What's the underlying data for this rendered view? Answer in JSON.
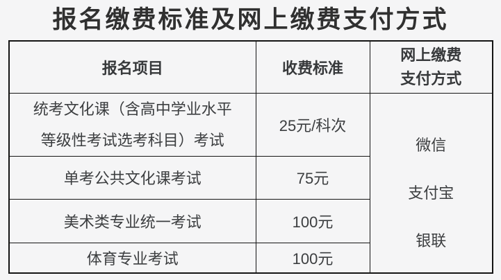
{
  "page": {
    "background": "#f5f5f6",
    "text_color": "#3c3e40",
    "border_color": "#141414"
  },
  "title": "报名缴费标准及网上缴费支付方式",
  "table": {
    "headers": {
      "item": "报名项目",
      "fee": "收费标准",
      "payment": "网上缴费\n支付方式"
    },
    "rows": [
      {
        "item": "统考文化课（含高中学业水平\n等级性考试选考科目）考试",
        "fee": "25元/科次"
      },
      {
        "item": "单考公共文化课考试",
        "fee": "75元"
      },
      {
        "item": "美术类专业统一考试",
        "fee": "100元"
      },
      {
        "item": "体育专业考试",
        "fee": "100元"
      }
    ],
    "payment_methods": [
      "微信",
      "支付宝",
      "银联"
    ]
  }
}
